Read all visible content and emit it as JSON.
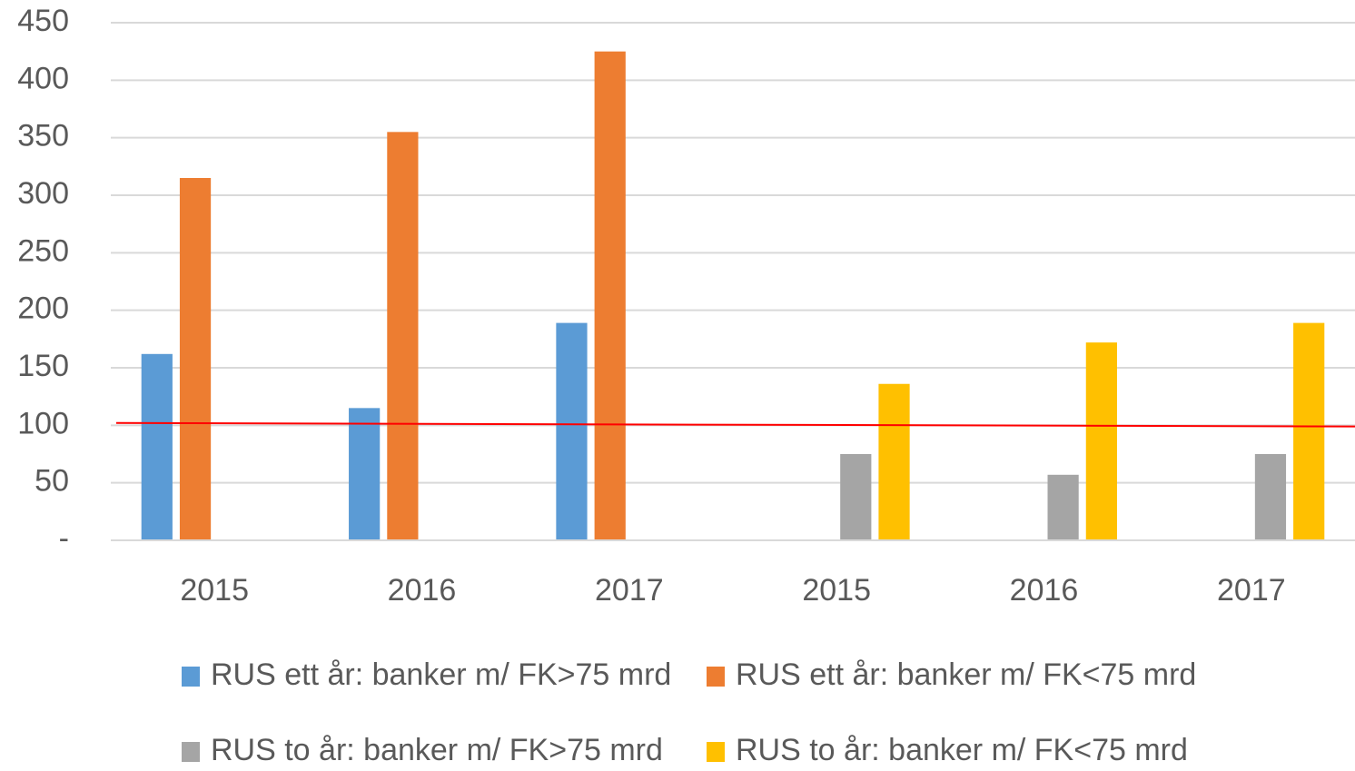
{
  "chart_data": {
    "type": "bar",
    "categories": [
      "2015",
      "2016",
      "2017",
      "2015",
      "2016",
      "2017"
    ],
    "series": [
      {
        "name": "RUS ett år: banker m/ FK>75 mrd",
        "color": "#5b9bd5",
        "values": [
          162,
          115,
          189,
          null,
          null,
          null
        ]
      },
      {
        "name": "RUS ett år: banker m/ FK<75 mrd",
        "color": "#ed7d31",
        "values": [
          315,
          355,
          425,
          null,
          null,
          null
        ]
      },
      {
        "name": "RUS to år: banker m/ FK>75 mrd",
        "color": "#a5a5a5",
        "values": [
          null,
          null,
          null,
          75,
          57,
          75
        ]
      },
      {
        "name": "RUS to år: banker m/ FK<75 mrd",
        "color": "#ffc000",
        "values": [
          null,
          null,
          null,
          136,
          172,
          189
        ]
      }
    ],
    "ylim": [
      0,
      450
    ],
    "yticks": [
      {
        "value": 0,
        "label": "-"
      },
      50,
      100,
      150,
      200,
      250,
      300,
      350,
      400,
      450
    ],
    "grid": true,
    "reference_line": {
      "values": [
        102,
        99
      ],
      "color": "#ff0000"
    },
    "legend": "bottom"
  }
}
